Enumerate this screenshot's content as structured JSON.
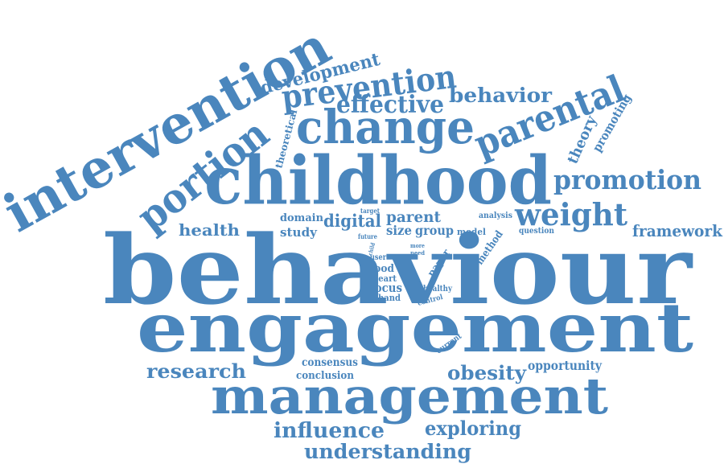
{
  "colors": {
    "text": "#4a86bd",
    "background": "#ffffff"
  },
  "words": {
    "intervention": "intervention",
    "development": "development",
    "prevention": "prevention",
    "portion": "portion",
    "theoretical": "theoretical",
    "effective": "effective",
    "behavior": "behavior",
    "parental": "parental",
    "change": "change",
    "theory": "theory",
    "promoting": "promoting",
    "childhood": "childhood",
    "promotion": "promotion",
    "target": "target",
    "domain": "domain",
    "digital": "digital",
    "parent": "parent",
    "weight": "weight",
    "analysis": "analysis",
    "health": "health",
    "study": "study",
    "future": "future",
    "size": "size",
    "group": "group",
    "model": "model",
    "question": "question",
    "framework": "framework",
    "child": "child",
    "more": "more",
    "need": "need",
    "method": "method",
    "user": "user",
    "paper": "paper",
    "food": "food",
    "heart": "heart",
    "behaviour": "behaviour",
    "focus": "focus",
    "healthy": "healthy",
    "hand": "hand",
    "control": "control",
    "engagement": "engagement",
    "current": "current",
    "consensus": "consensus",
    "research": "research",
    "conclusion": "conclusion",
    "obesity": "obesity",
    "opportunity": "opportunity",
    "management": "management",
    "influence": "influence",
    "exploring": "exploring",
    "understanding": "understanding"
  }
}
